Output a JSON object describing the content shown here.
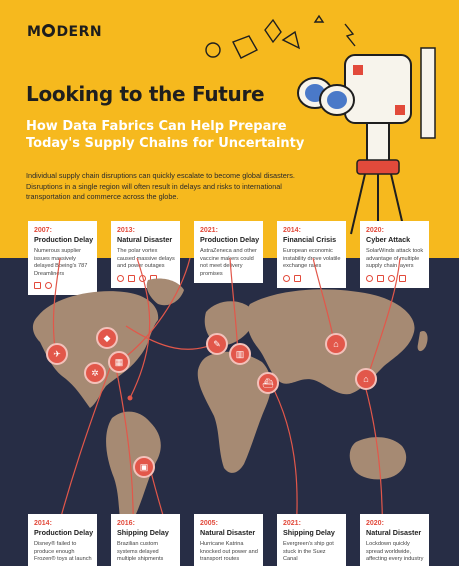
{
  "brand": {
    "logo_left": "M",
    "logo_right": "DERN"
  },
  "header": {
    "title": "Looking to the Future",
    "subtitle": "How Data Fabrics Can Help Prepare Today's Supply Chains for Uncertainty",
    "intro": "Individual supply chain disruptions can quickly escalate to become global disasters. Disruptions in a single region will often result in delays and risks to international transportation and commerce across the globe."
  },
  "colors": {
    "yellow": "#f6b91e",
    "navy": "#272d45",
    "red": "#e24a3b",
    "land": "#a68a73"
  },
  "top_cards": [
    {
      "year": "2007:",
      "title": "Production Delay",
      "desc": "Numerous supplier issues massively delayed Boeing's 787 Dreamliners"
    },
    {
      "year": "2013:",
      "title": "Natural Disaster",
      "desc": "The polar vortex caused massive delays and power outages"
    },
    {
      "year": "2021:",
      "title": "Production Delay",
      "desc": "AstraZeneca and other vaccine makers could not meet delivery promises"
    },
    {
      "year": "2014:",
      "title": "Financial Crisis",
      "desc": "European economic instability drove volatile exchange rates"
    },
    {
      "year": "2020:",
      "title": "Cyber Attack",
      "desc": "SolarWinds attack took advantage of multiple supply chain layers"
    }
  ],
  "bottom_cards": [
    {
      "year": "2014:",
      "title": "Production Delay",
      "desc": "Disney® failed to produce enough Frozen® toys at launch"
    },
    {
      "year": "2016:",
      "title": "Shipping Delay",
      "desc": "Brazilian custom systems delayed multiple shipments"
    },
    {
      "year": "2005:",
      "title": "Natural Disaster",
      "desc": "Hurricane Katrina knocked out power and transport routes"
    },
    {
      "year": "2021:",
      "title": "Shipping Delay",
      "desc": "Evergreen's ship got stuck in the Suez Canal"
    },
    {
      "year": "2020:",
      "title": "Natural Disaster",
      "desc": "Lockdown quickly spread worldwide, affecting every industry"
    }
  ]
}
